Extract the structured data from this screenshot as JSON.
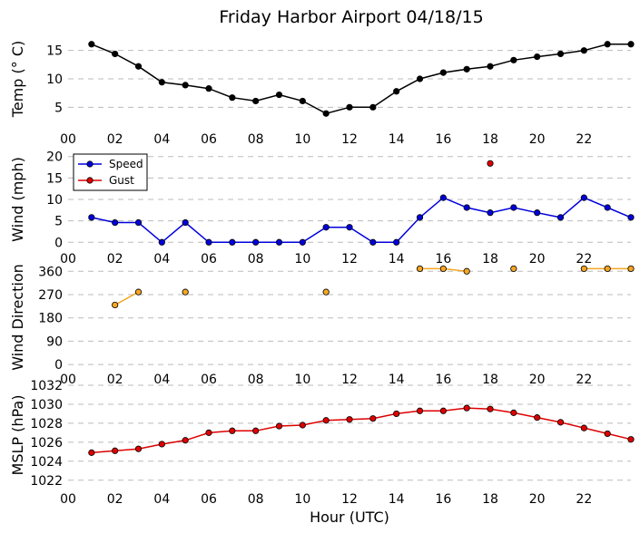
{
  "title": "Friday Harbor Airport 04/18/15",
  "xlabel": "Hour (UTC)",
  "x_tick_labels": [
    "00",
    "02",
    "04",
    "06",
    "08",
    "10",
    "12",
    "14",
    "16",
    "18",
    "20",
    "22"
  ],
  "colors": {
    "temp": "#000000",
    "speed": "#0000dd",
    "gust": "#dd0000",
    "direction": "#f5a623",
    "mslp": "#dd0000",
    "grid": "#bbbbbb"
  },
  "legend": {
    "speed_label": "Speed",
    "gust_label": "Gust",
    "placement": "upper-left"
  },
  "chart_data": [
    {
      "type": "line",
      "ylabel": "Temp ($^\\circ$C)",
      "ylabel_display": "Temp (° C)",
      "yticks": [
        5,
        10,
        15
      ],
      "ylim": [
        2.5,
        17.5
      ],
      "xlim": [
        0,
        24
      ],
      "series": [
        {
          "x": [
            1,
            2,
            3,
            4,
            5,
            6,
            7,
            8,
            9,
            10,
            11,
            12,
            13,
            14,
            15,
            16,
            17,
            18,
            19,
            20,
            21,
            22,
            23,
            24
          ],
          "values": [
            16.1,
            14.4,
            12.2,
            9.4,
            8.9,
            8.3,
            6.7,
            6.1,
            7.2,
            6.1,
            3.9,
            5.0,
            5.0,
            7.8,
            10.0,
            11.1,
            11.7,
            12.2,
            13.3,
            13.9,
            14.4,
            15.0,
            16.1,
            16.1
          ]
        }
      ]
    },
    {
      "type": "line",
      "ylabel": "Wind (mph)",
      "yticks": [
        0,
        5,
        10,
        15,
        20
      ],
      "ylim": [
        -1,
        21
      ],
      "xlim": [
        0,
        24
      ],
      "series": [
        {
          "name": "Speed",
          "x": [
            1,
            2,
            3,
            4,
            5,
            6,
            7,
            8,
            9,
            10,
            11,
            12,
            13,
            14,
            15,
            16,
            17,
            18,
            19,
            20,
            21,
            22,
            23,
            24
          ],
          "values": [
            5.8,
            4.6,
            4.6,
            0,
            4.6,
            0,
            0,
            0,
            0,
            0,
            3.5,
            3.5,
            0,
            0,
            5.8,
            10.4,
            8.1,
            6.9,
            8.1,
            6.9,
            5.8,
            10.4,
            8.1,
            5.8
          ]
        },
        {
          "name": "Gust",
          "x": [
            18
          ],
          "values": [
            18.4
          ]
        }
      ]
    },
    {
      "type": "scatter",
      "ylabel": "Wind Direction",
      "yticks": [
        0,
        90,
        180,
        270,
        360
      ],
      "ylim": [
        -10,
        375
      ],
      "xlim": [
        0,
        24
      ],
      "series": [
        {
          "x": [
            1,
            2,
            3,
            4,
            5,
            6,
            7,
            8,
            9,
            10,
            11,
            12,
            13,
            14,
            15,
            16,
            17,
            18,
            19,
            20,
            21,
            22,
            23,
            24
          ],
          "values": [
            null,
            230,
            280,
            null,
            280,
            null,
            null,
            null,
            null,
            null,
            280,
            null,
            null,
            null,
            370,
            370,
            360,
            null,
            370,
            null,
            null,
            370,
            370,
            370
          ]
        }
      ]
    },
    {
      "type": "line",
      "ylabel": "MSLP (hPa)",
      "yticks": [
        1022,
        1024,
        1026,
        1028,
        1030,
        1032
      ],
      "ylim": [
        1021.5,
        1032
      ],
      "xlim": [
        0,
        24
      ],
      "series": [
        {
          "x": [
            1,
            2,
            3,
            4,
            5,
            6,
            7,
            8,
            9,
            10,
            11,
            12,
            13,
            14,
            15,
            16,
            17,
            18,
            19,
            20,
            21,
            22,
            23,
            24
          ],
          "values": [
            1024.9,
            1025.1,
            1025.3,
            1025.8,
            1026.2,
            1027.0,
            1027.2,
            1027.2,
            1027.7,
            1027.8,
            1028.3,
            1028.4,
            1028.5,
            1029.0,
            1029.3,
            1029.3,
            1029.6,
            1029.5,
            1029.1,
            1028.6,
            1028.1,
            1027.5,
            1026.9,
            1026.3
          ]
        }
      ]
    }
  ]
}
